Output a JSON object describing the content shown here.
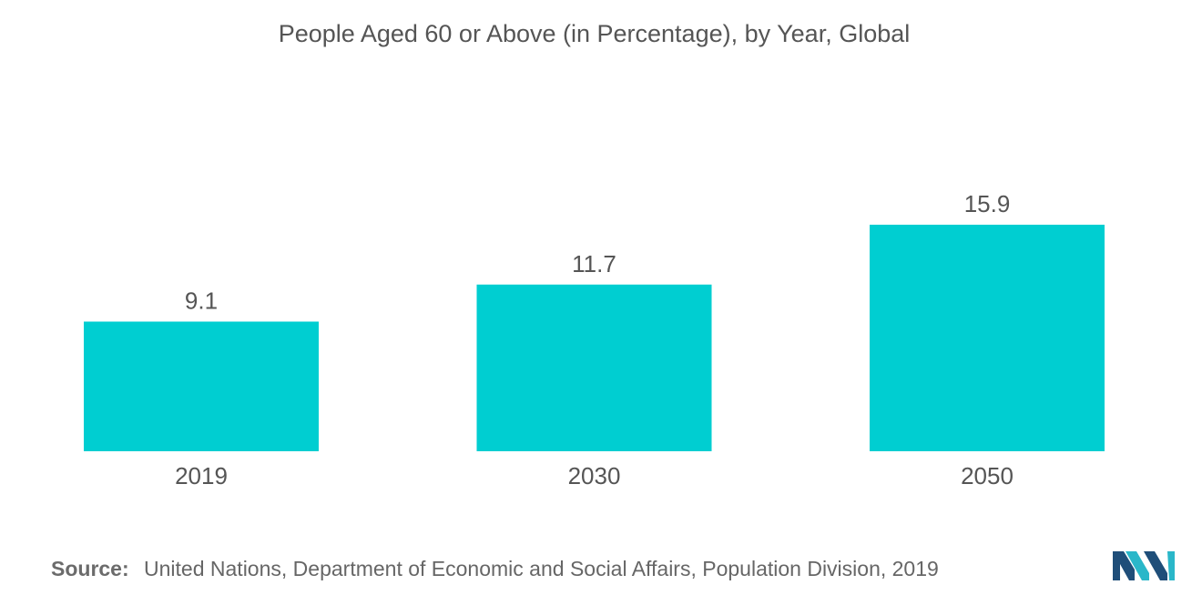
{
  "title": "People Aged 60 or Above (in Percentage), by Year, Global",
  "source": {
    "label": "Source:",
    "text": "United Nations, Department of Economic and Social Affairs, Population Division, 2019"
  },
  "colors": {
    "bar": "#00CED1",
    "text": "#555555"
  },
  "chart_data": {
    "type": "bar",
    "title": "People Aged 60 or Above (in Percentage), by Year, Global",
    "categories": [
      "2019",
      "2030",
      "2050"
    ],
    "values": [
      9.1,
      11.7,
      15.9
    ],
    "data_labels": [
      "9.1",
      "11.7",
      "15.9"
    ],
    "xlabel": "",
    "ylabel": "",
    "ylim": [
      0,
      25
    ],
    "grid": false,
    "legend": "none"
  },
  "logo": {
    "icon": "mordor-intelligence-logo"
  }
}
